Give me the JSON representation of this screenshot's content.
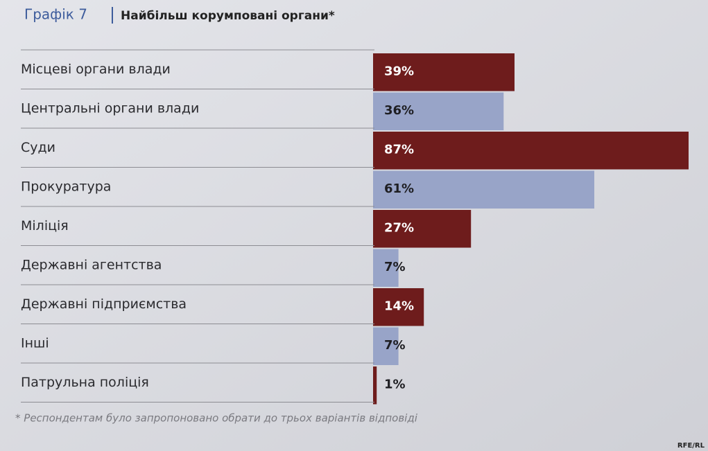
{
  "chart_data": {
    "type": "hbar",
    "figure_label": "Графік 7",
    "title": "Найбільш корумповані органи*",
    "categories": [
      "Місцеві органи влади",
      "Центральні органи влади",
      "Суди",
      "Прокуратура",
      "Міліція",
      "Державні агентства",
      "Державні підприємства",
      "Інші",
      "Патрульна поліція"
    ],
    "values": [
      39,
      36,
      87,
      61,
      27,
      7,
      14,
      7,
      1
    ],
    "value_labels": [
      "39%",
      "36%",
      "87%",
      "61%",
      "27%",
      "7%",
      "14%",
      "7%",
      "1%"
    ],
    "colors": [
      "#6e1c1c",
      "#98a4c8",
      "#6e1c1c",
      "#98a4c8",
      "#6e1c1c",
      "#98a4c8",
      "#6e1c1c",
      "#98a4c8",
      "#6e1c1c"
    ],
    "footnote": "* Респондентам було запропоновано обрати до трьох варіантів відповіді",
    "source": "RFE/RL"
  }
}
